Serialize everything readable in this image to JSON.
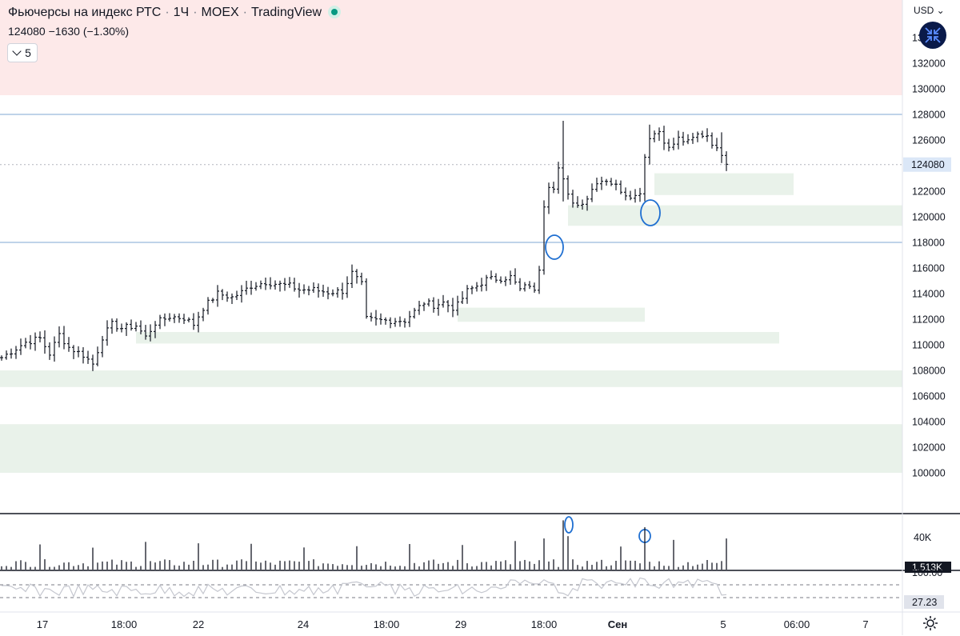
{
  "header": {
    "symbol_name": "Фьючерсы на индекс РТС",
    "interval": "1Ч",
    "exchange": "MOEX",
    "provider": "TradingView",
    "ohlc_summary": "124080 −1630 (−1.30%)",
    "interval_button_label": "5"
  },
  "price_scale": {
    "currency": "USD",
    "tick_labels": [
      "134000",
      "132000",
      "130000",
      "128000",
      "126000",
      "124000",
      "122000",
      "120000",
      "118000",
      "116000",
      "114000",
      "112000",
      "110000",
      "108000",
      "106000",
      "104000",
      "102000",
      "100000"
    ],
    "current_price_label": "124080"
  },
  "volume_pane": {
    "tick_label": "40K",
    "current_value_label": "1.513K"
  },
  "indicator_pane": {
    "upper_label": "100.00",
    "value_label": "27.23"
  },
  "time_axis": {
    "labels": [
      "17",
      "18:00",
      "22",
      "24",
      "18:00",
      "29",
      "18:00",
      "Сен",
      "5",
      "06:00",
      "7"
    ]
  },
  "colors": {
    "bar": "#131722",
    "zone_fill": "#e9f2ea",
    "upper_zone_fill": "#fde9e9",
    "horizontal_line": "#7fa7d3",
    "current_price_tag": "#dbe7f7",
    "annotation": "#1f6fd1",
    "volume_bar": "#131722",
    "indicator_line": "#b2b5be"
  },
  "chart_data": {
    "type": "ohlc",
    "y_axis": {
      "ylim": [
        99000,
        136000
      ]
    },
    "horizontal_levels": [
      128000,
      118000
    ],
    "current_price": 124080,
    "supply_zone_above": 129500,
    "zones": [
      {
        "from_bar": 0,
        "to_bar": 188,
        "low": 100000,
        "high": 103800
      },
      {
        "from_bar": 0,
        "to_bar": 188,
        "low": 106700,
        "high": 108000
      },
      {
        "from_bar": 28,
        "to_bar": 162,
        "low": 110100,
        "high": 111000
      },
      {
        "from_bar": 95,
        "to_bar": 134,
        "low": 111800,
        "high": 112900
      },
      {
        "from_bar": 118,
        "to_bar": 188,
        "low": 119300,
        "high": 120900
      },
      {
        "from_bar": 136,
        "to_bar": 165,
        "low": 121700,
        "high": 123400
      }
    ],
    "anchors": [
      [
        0,
        109000
      ],
      [
        5,
        110200
      ],
      [
        8,
        110500
      ],
      [
        10,
        109300
      ],
      [
        12,
        110800
      ],
      [
        14,
        109800
      ],
      [
        17,
        109200
      ],
      [
        19,
        108500
      ],
      [
        21,
        110600
      ],
      [
        23,
        111600
      ],
      [
        25,
        111300
      ],
      [
        28,
        111500
      ],
      [
        30,
        110600
      ],
      [
        32,
        111700
      ],
      [
        35,
        112200
      ],
      [
        38,
        112100
      ],
      [
        40,
        111600
      ],
      [
        42,
        112900
      ],
      [
        45,
        114000
      ],
      [
        48,
        113700
      ],
      [
        50,
        114100
      ],
      [
        52,
        114600
      ],
      [
        55,
        114900
      ],
      [
        58,
        114700
      ],
      [
        60,
        114600
      ],
      [
        62,
        114300
      ],
      [
        65,
        114300
      ],
      [
        68,
        114100
      ],
      [
        71,
        114200
      ],
      [
        73,
        115600
      ],
      [
        75,
        114700
      ],
      [
        76,
        112000
      ],
      [
        78,
        111900
      ],
      [
        81,
        111900
      ],
      [
        84,
        111900
      ],
      [
        86,
        112600
      ],
      [
        88,
        113300
      ],
      [
        90,
        113100
      ],
      [
        92,
        113300
      ],
      [
        94,
        112900
      ],
      [
        95,
        113100
      ],
      [
        97,
        114200
      ],
      [
        99,
        114600
      ],
      [
        101,
        115100
      ],
      [
        104,
        115200
      ],
      [
        106,
        115300
      ],
      [
        108,
        114300
      ],
      [
        110,
        114700
      ],
      [
        111,
        114100
      ],
      [
        112,
        116000
      ],
      [
        113,
        121000
      ],
      [
        114,
        122500
      ],
      [
        115,
        122400
      ],
      [
        116,
        123800
      ],
      [
        117,
        122800
      ],
      [
        118,
        121600
      ],
      [
        120,
        120900
      ],
      [
        122,
        121500
      ],
      [
        124,
        122800
      ],
      [
        126,
        122900
      ],
      [
        128,
        122400
      ],
      [
        130,
        121800
      ],
      [
        132,
        121600
      ],
      [
        133,
        122000
      ],
      [
        134,
        124700
      ],
      [
        135,
        126300
      ],
      [
        137,
        126700
      ],
      [
        139,
        125300
      ],
      [
        141,
        126100
      ],
      [
        143,
        125800
      ],
      [
        145,
        126400
      ],
      [
        147,
        126400
      ],
      [
        149,
        125200
      ],
      [
        150,
        125000
      ],
      [
        151,
        124100
      ]
    ],
    "spikes": [
      [
        113,
        118000,
        121100
      ],
      [
        117,
        121200,
        127500
      ],
      [
        134,
        122200,
        124900
      ],
      [
        135,
        124800,
        127200
      ],
      [
        150,
        124200,
        126600
      ]
    ],
    "volume": {
      "ylim": [
        0,
        62000
      ],
      "tick": 40000
    }
  }
}
